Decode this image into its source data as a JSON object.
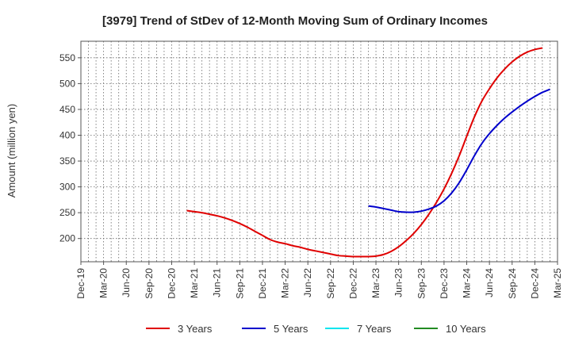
{
  "chart_data": {
    "type": "line",
    "title": "[3979]  Trend of StDev of 12-Month Moving Sum of Ordinary Incomes",
    "ylabel": "Amount (million yen)",
    "xlabel": "",
    "x_ticks": [
      "Dec-19",
      "Mar-20",
      "Jun-20",
      "Sep-20",
      "Dec-20",
      "Mar-21",
      "Jun-21",
      "Sep-21",
      "Dec-21",
      "Mar-22",
      "Jun-22",
      "Sep-22",
      "Dec-22",
      "Mar-23",
      "Jun-23",
      "Sep-23",
      "Dec-23",
      "Mar-24",
      "Jun-24",
      "Sep-24",
      "Dec-24",
      "Mar-25"
    ],
    "y_ticks": [
      200,
      250,
      300,
      350,
      400,
      450,
      500,
      550
    ],
    "ylim": [
      155,
      582
    ],
    "grid": true,
    "legend_position": "bottom",
    "series": [
      {
        "name": "3 Years",
        "color": "#e00000",
        "points": [
          [
            "Feb-21",
            254
          ],
          [
            "Mar-21",
            252
          ],
          [
            "Apr-21",
            250
          ],
          [
            "May-21",
            247
          ],
          [
            "Jun-21",
            244
          ],
          [
            "Jul-21",
            240
          ],
          [
            "Aug-21",
            235
          ],
          [
            "Sep-21",
            229
          ],
          [
            "Oct-21",
            222
          ],
          [
            "Nov-21",
            214
          ],
          [
            "Dec-21",
            206
          ],
          [
            "Jan-22",
            198
          ],
          [
            "Feb-22",
            193
          ],
          [
            "Mar-22",
            190
          ],
          [
            "Apr-22",
            186
          ],
          [
            "May-22",
            183
          ],
          [
            "Jun-22",
            179
          ],
          [
            "Jul-22",
            176
          ],
          [
            "Aug-22",
            173
          ],
          [
            "Sep-22",
            170
          ],
          [
            "Oct-22",
            167
          ],
          [
            "Nov-22",
            166
          ],
          [
            "Dec-22",
            165
          ],
          [
            "Jan-23",
            165
          ],
          [
            "Feb-23",
            165
          ],
          [
            "Mar-23",
            166
          ],
          [
            "Apr-23",
            169
          ],
          [
            "May-23",
            175
          ],
          [
            "Jun-23",
            184
          ],
          [
            "Jul-23",
            196
          ],
          [
            "Aug-23",
            210
          ],
          [
            "Sep-23",
            227
          ],
          [
            "Oct-23",
            247
          ],
          [
            "Nov-23",
            270
          ],
          [
            "Dec-23",
            296
          ],
          [
            "Jan-24",
            326
          ],
          [
            "Feb-24",
            360
          ],
          [
            "Mar-24",
            398
          ],
          [
            "Apr-24",
            435
          ],
          [
            "May-24",
            466
          ],
          [
            "Jun-24",
            490
          ],
          [
            "Jul-24",
            511
          ],
          [
            "Aug-24",
            528
          ],
          [
            "Sep-24",
            542
          ],
          [
            "Oct-24",
            553
          ],
          [
            "Nov-24",
            561
          ],
          [
            "Dec-24",
            566
          ],
          [
            "Jan-25",
            569
          ]
        ]
      },
      {
        "name": "5 Years",
        "color": "#0000cc",
        "points": [
          [
            "Feb-23",
            263
          ],
          [
            "Mar-23",
            261
          ],
          [
            "Apr-23",
            258
          ],
          [
            "May-23",
            255
          ],
          [
            "Jun-23",
            252
          ],
          [
            "Jul-23",
            251
          ],
          [
            "Aug-23",
            251
          ],
          [
            "Sep-23",
            253
          ],
          [
            "Oct-23",
            257
          ],
          [
            "Nov-23",
            263
          ],
          [
            "Dec-23",
            273
          ],
          [
            "Jan-24",
            288
          ],
          [
            "Feb-24",
            308
          ],
          [
            "Mar-24",
            333
          ],
          [
            "Apr-24",
            360
          ],
          [
            "May-24",
            384
          ],
          [
            "Jun-24",
            403
          ],
          [
            "Jul-24",
            419
          ],
          [
            "Aug-24",
            433
          ],
          [
            "Sep-24",
            445
          ],
          [
            "Oct-24",
            456
          ],
          [
            "Nov-24",
            466
          ],
          [
            "Dec-24",
            475
          ],
          [
            "Jan-25",
            483
          ],
          [
            "Feb-25",
            489
          ]
        ]
      },
      {
        "name": "7 Years",
        "color": "#00e5ee",
        "points": []
      },
      {
        "name": "10 Years",
        "color": "#228b22",
        "points": []
      }
    ]
  }
}
